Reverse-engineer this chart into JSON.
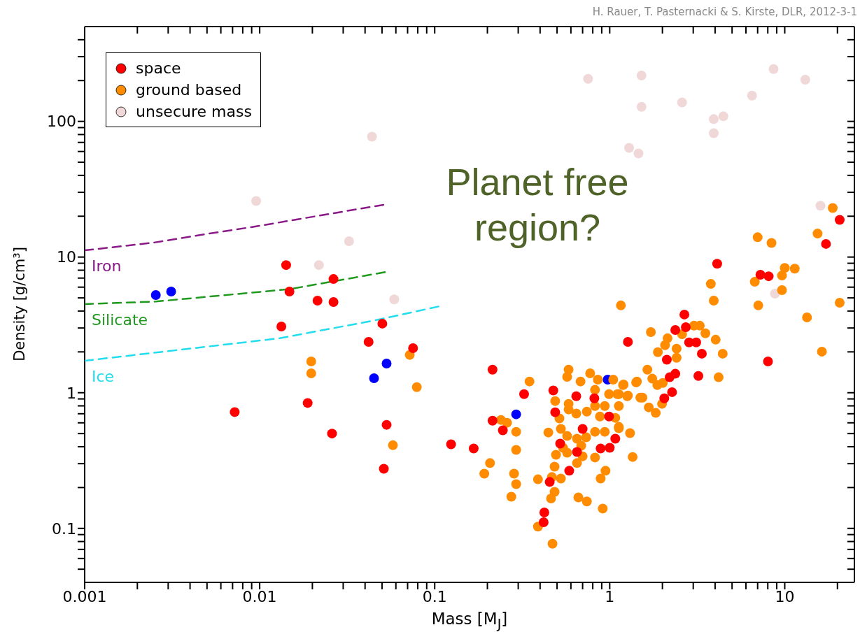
{
  "chart_data": {
    "type": "scatter",
    "xlabel": "Mass [M$_{J}$]",
    "ylabel": "Density [g/cm³]",
    "log": "xy",
    "marker": "circle",
    "legend": "top left",
    "xlim": [
      0.001,
      25
    ],
    "ylim": [
      0.04,
      500
    ],
    "xticks": [
      0.001,
      {
        "value": 0.002,
        "label": null
      },
      {
        "value": 0.003,
        "label": null
      },
      {
        "value": 0.004,
        "label": null
      },
      {
        "value": 0.005,
        "label": null
      },
      {
        "value": 0.006,
        "label": null
      },
      {
        "value": 0.007,
        "label": null
      },
      {
        "value": 0.008,
        "label": null
      },
      {
        "value": 0.009,
        "label": null
      },
      0.01,
      {
        "value": 0.02,
        "label": null
      },
      {
        "value": 0.03,
        "label": null
      },
      {
        "value": 0.04,
        "label": null
      },
      {
        "value": 0.05,
        "label": null
      },
      {
        "value": 0.06,
        "label": null
      },
      {
        "value": 0.07,
        "label": null
      },
      {
        "value": 0.08,
        "label": null
      },
      {
        "value": 0.09,
        "label": null
      },
      0.1,
      {
        "value": 0.2,
        "label": null
      },
      {
        "value": 0.3,
        "label": null
      },
      {
        "value": 0.4,
        "label": null
      },
      {
        "value": 0.5,
        "label": null
      },
      {
        "value": 0.6,
        "label": null
      },
      {
        "value": 0.7,
        "label": null
      },
      {
        "value": 0.8,
        "label": null
      },
      {
        "value": 0.9,
        "label": null
      },
      1,
      {
        "value": 2,
        "label": null
      },
      {
        "value": 3,
        "label": null
      },
      {
        "value": 4,
        "label": null
      },
      {
        "value": 5,
        "label": null
      },
      {
        "value": 6,
        "label": null
      },
      {
        "value": 7,
        "label": null
      },
      {
        "value": 8,
        "label": null
      },
      {
        "value": 9,
        "label": null
      },
      10,
      {
        "value": 20,
        "label": null
      }
    ],
    "yticks": [
      {
        "value": 0.05,
        "label": null
      },
      {
        "value": 0.06,
        "label": null
      },
      {
        "value": 0.07,
        "label": null
      },
      {
        "value": 0.08,
        "label": null
      },
      {
        "value": 0.09,
        "label": null
      },
      0.1,
      {
        "value": 0.2,
        "label": null
      },
      {
        "value": 0.3,
        "label": null
      },
      {
        "value": 0.4,
        "label": null
      },
      {
        "value": 0.5,
        "label": null
      },
      {
        "value": 0.6,
        "label": null
      },
      {
        "value": 0.7,
        "label": null
      },
      {
        "value": 0.8,
        "label": null
      },
      {
        "value": 0.9,
        "label": null
      },
      1,
      {
        "value": 2,
        "label": null
      },
      {
        "value": 3,
        "label": null
      },
      {
        "value": 4,
        "label": null
      },
      {
        "value": 5,
        "label": null
      },
      {
        "value": 6,
        "label": null
      },
      {
        "value": 7,
        "label": null
      },
      {
        "value": 8,
        "label": null
      },
      {
        "value": 9,
        "label": null
      },
      10,
      {
        "value": 20,
        "label": null
      },
      {
        "value": 30,
        "label": null
      },
      {
        "value": 40,
        "label": null
      },
      {
        "value": 50,
        "label": null
      },
      {
        "value": 60,
        "label": null
      },
      {
        "value": 70,
        "label": null
      },
      {
        "value": 80,
        "label": null
      },
      {
        "value": 90,
        "label": null
      },
      100,
      {
        "value": 200,
        "label": null
      },
      {
        "value": 300,
        "label": null
      },
      {
        "value": 400,
        "label": null
      }
    ],
    "annotations": [
      "H. Rauer, T. Pasternacki & S. Kirste, DLR, 2012-3-1",
      "Planet free region?"
    ],
    "series": [
      {
        "name": "space",
        "color": "#ff0000",
        "x": [
          0.0072,
          0.0133,
          0.01416,
          0.0148,
          0.0188,
          0.0214,
          0.0259,
          0.0264,
          0.0264,
          0.0419,
          0.0502,
          0.0512,
          0.0531,
          0.0752,
          1.27,
          0.214,
          0.324,
          0.476,
          0.644,
          0.817,
          0.488,
          0.991,
          0.214,
          0.245,
          0.7,
          1.076,
          0.124,
          0.167,
          0.521,
          0.65,
          0.887,
          1.0,
          0.587,
          0.454,
          0.423,
          0.419,
          17.2,
          4.11,
          7.26,
          8.09,
          2.67,
          2.37,
          2.72,
          2.84,
          3.12,
          3.36,
          2.12,
          2.2,
          2.37,
          3.21,
          8.02,
          2.27,
          2.05,
          20.6
        ],
        "values": [
          0.72,
          3.08,
          8.73,
          5.57,
          0.84,
          4.77,
          0.5,
          6.89,
          4.66,
          2.37,
          3.23,
          0.275,
          0.58,
          2.13,
          2.37,
          1.48,
          0.977,
          1.04,
          0.942,
          0.91,
          0.718,
          0.668,
          0.622,
          0.528,
          0.541,
          0.458,
          0.417,
          0.388,
          0.422,
          0.366,
          0.388,
          0.393,
          0.266,
          0.22,
          0.131,
          0.111,
          12.5,
          8.93,
          7.4,
          7.22,
          3.77,
          2.9,
          3.04,
          2.35,
          2.35,
          1.94,
          1.75,
          1.3,
          1.38,
          1.33,
          1.7,
          1.01,
          0.91,
          18.8
        ]
      },
      {
        "name": "ground based",
        "color": "#ff8c00",
        "x": [
          0.0197,
          0.0197,
          0.072,
          0.079,
          0.0577,
          0.582,
          0.571,
          0.348,
          0.681,
          0.773,
          0.855,
          1.047,
          1.2,
          1.416,
          0.824,
          0.488,
          0.582,
          0.991,
          1.127,
          1.259,
          1.496,
          0.582,
          0.644,
          0.74,
          0.824,
          0.937,
          1.127,
          0.879,
          1.076,
          0.239,
          0.259,
          0.516,
          0.292,
          0.446,
          0.526,
          0.824,
          0.937,
          1.127,
          1.306,
          0.571,
          0.65,
          0.733,
          0.541,
          0.687,
          0.493,
          0.571,
          0.7,
          0.824,
          1.352,
          0.292,
          0.65,
          0.484,
          0.207,
          0.192,
          0.284,
          0.292,
          0.389,
          0.526,
          0.467,
          0.946,
          0.887,
          0.484,
          0.462,
          0.274,
          0.662,
          0.74,
          0.912,
          0.389,
          0.471,
          7.0,
          8.4,
          15.4,
          10.0,
          11.4,
          9.64,
          6.74,
          9.64,
          3.78,
          3.93,
          7.06,
          20.6,
          13.4,
          16.3,
          1.158,
          1.718,
          2.14,
          2.07,
          1.884,
          2.41,
          2.41,
          2.59,
          3.03,
          3.27,
          3.52,
          4.03,
          4.42,
          4.19,
          1.641,
          1.75,
          1.43,
          1.191,
          1.87,
          2.01,
          1.27,
          1.106,
          1.538,
          1.671,
          1.832,
          1.99,
          1.127,
          18.8
        ],
        "values": [
          1.7,
          1.39,
          1.9,
          1.1,
          0.41,
          1.48,
          1.31,
          1.21,
          1.21,
          1.39,
          1.25,
          1.25,
          1.15,
          1.19,
          1.05,
          0.868,
          0.828,
          0.977,
          0.977,
          0.942,
          0.92,
          0.753,
          0.702,
          0.726,
          0.798,
          0.798,
          0.798,
          0.668,
          0.653,
          0.63,
          0.601,
          0.646,
          0.515,
          0.509,
          0.541,
          0.515,
          0.515,
          0.547,
          0.504,
          0.48,
          0.458,
          0.469,
          0.393,
          0.407,
          0.349,
          0.361,
          0.34,
          0.333,
          0.336,
          0.379,
          0.303,
          0.285,
          0.303,
          0.253,
          0.253,
          0.212,
          0.23,
          0.233,
          0.239,
          0.266,
          0.233,
          0.186,
          0.166,
          0.171,
          0.169,
          0.158,
          0.14,
          0.103,
          0.077,
          14.0,
          12.7,
          14.9,
          8.32,
          8.22,
          7.31,
          6.57,
          5.7,
          6.34,
          4.77,
          4.4,
          4.61,
          3.59,
          2.01,
          4.4,
          2.8,
          2.52,
          2.24,
          1.99,
          2.11,
          1.81,
          2.7,
          3.12,
          3.12,
          2.74,
          2.46,
          1.94,
          1.3,
          1.48,
          1.27,
          1.21,
          1.14,
          1.14,
          1.18,
          0.953,
          0.977,
          0.92,
          0.78,
          0.71,
          0.828,
          0.56,
          23.0
        ]
      },
      {
        "name": "unsecure mass",
        "color": "#f0d8d8",
        "x": [
          0.752,
          1.52,
          1.52,
          2.59,
          6.5,
          8.63,
          13.1,
          3.93,
          4.46,
          3.93,
          1.29,
          1.46,
          0.0438,
          0.00955,
          16.0,
          0.0324,
          0.0218,
          0.0587,
          8.79
        ],
        "values": [
          206,
          218,
          128,
          138,
          155,
          243,
          203,
          104,
          109,
          81.8,
          63.8,
          58.0,
          77.1,
          25.9,
          23.9,
          13.1,
          8.73,
          4.87,
          5.37
        ]
      },
      {
        "color": "#0000ff",
        "x": [
          0.00255,
          0.00312,
          0.045,
          0.0531,
          0.292,
          0.973
        ],
        "values": [
          5.25,
          5.57,
          1.28,
          1.64,
          0.693,
          1.25
        ]
      },
      {
        "name": "Iron",
        "type": "line",
        "marker": "none",
        "line_style": "dashed",
        "color": "#8b1a89",
        "x": [
          0.001,
          0.0025,
          0.005,
          0.01,
          0.02,
          0.052
        ],
        "values": [
          11.2,
          12.8,
          14.8,
          17.0,
          19.8,
          24.4
        ]
      },
      {
        "name": "Silicate",
        "type": "line",
        "marker": "none",
        "line_style": "dashed",
        "color": "#1f9a1f",
        "x": [
          0.001,
          0.00255,
          0.0148,
          0.0526
        ],
        "values": [
          4.5,
          4.7,
          5.8,
          7.76
        ]
      },
      {
        "name": "Ice",
        "type": "line",
        "marker": "none",
        "line_style": "dashed",
        "color": "#22ddee",
        "x": [
          0.001,
          0.013,
          0.0457,
          0.1076
        ],
        "values": [
          1.72,
          2.52,
          3.42,
          4.35
        ]
      }
    ]
  }
}
